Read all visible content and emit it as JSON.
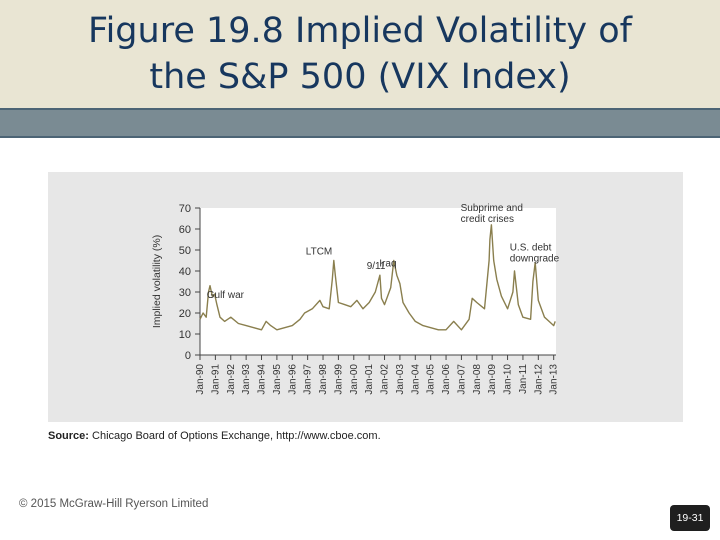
{
  "slide": {
    "title_line1": "Figure 19.8 Implied Volatility of",
    "title_line2": "the S&P 500 (VIX Index)",
    "source_label": "Source:",
    "source_text": " Chicago Board of Options Exchange, http://www.cboe.com.",
    "copyright": "© 2015 McGraw-Hill Ryerson Limited",
    "page_number": "19-31"
  },
  "chart_data": {
    "type": "line",
    "title": "",
    "xlabel": "",
    "ylabel": "Implied volatility (%)",
    "ylim": [
      0,
      70
    ],
    "yticks": [
      0,
      10,
      20,
      30,
      40,
      50,
      60,
      70
    ],
    "grid": false,
    "xticks": [
      "Jan-90",
      "Jan-91",
      "Jan-92",
      "Jan-93",
      "Jan-94",
      "Jan-95",
      "Jan-96",
      "Jan-97",
      "Jan-98",
      "Jan-99",
      "Jan-00",
      "Jan-01",
      "Jan-02",
      "Jan-03",
      "Jan-04",
      "Jan-05",
      "Jan-06",
      "Jan-07",
      "Jan-08",
      "Jan-09",
      "Jan-10",
      "Jan-11",
      "Jan-12",
      "Jan-13"
    ],
    "series": [
      {
        "name": "",
        "color": "#8a7f4e",
        "x": [
          1990.0,
          1990.2,
          1990.4,
          1990.55,
          1990.65,
          1990.8,
          1990.95,
          1991.1,
          1991.3,
          1991.6,
          1992.0,
          1992.5,
          1993.0,
          1993.5,
          1994.0,
          1994.3,
          1994.6,
          1995.0,
          1995.5,
          1996.0,
          1996.5,
          1996.8,
          1997.3,
          1997.8,
          1998.0,
          1998.4,
          1998.6,
          1998.7,
          1998.8,
          1999.0,
          1999.4,
          1999.8,
          2000.2,
          2000.6,
          2001.0,
          2001.4,
          2001.7,
          2001.8,
          2002.0,
          2002.4,
          2002.6,
          2002.8,
          2003.0,
          2003.2,
          2003.6,
          2004.0,
          2004.5,
          2005.0,
          2005.5,
          2006.0,
          2006.5,
          2007.0,
          2007.5,
          2007.7,
          2008.0,
          2008.5,
          2008.8,
          2008.85,
          2008.95,
          2009.1,
          2009.3,
          2009.6,
          2010.0,
          2010.35,
          2010.45,
          2010.7,
          2011.0,
          2011.5,
          2011.65,
          2011.8,
          2012.0,
          2012.4,
          2012.7,
          2013.0,
          2013.1
        ],
        "y": [
          17,
          20,
          18,
          30,
          33,
          28,
          29,
          24,
          18,
          16,
          18,
          15,
          14,
          13,
          12,
          16,
          14,
          12,
          13,
          14,
          17,
          20,
          22,
          26,
          23,
          22,
          36,
          45,
          38,
          25,
          24,
          23,
          26,
          22,
          25,
          30,
          38,
          27,
          24,
          32,
          45,
          38,
          34,
          25,
          20,
          16,
          14,
          13,
          12,
          12,
          16,
          12,
          17,
          27,
          25,
          22,
          45,
          55,
          62,
          45,
          36,
          28,
          22,
          30,
          40,
          24,
          18,
          17,
          35,
          44,
          26,
          18,
          16,
          14,
          16
        ]
      }
    ],
    "annotations": [
      {
        "text": "Gulf war",
        "x": 1990.7,
        "y": 30
      },
      {
        "text": "LTCM",
        "x": 1998.7,
        "y": 46
      },
      {
        "text": "9/11",
        "x": 2001.75,
        "y": 38
      },
      {
        "text": "Iraq",
        "x": 2002.7,
        "y": 45
      },
      {
        "text": "Subprime and credit crises",
        "x": 2008.9,
        "y": 62
      },
      {
        "text": "U.S. debt downgrade",
        "x": 2011.7,
        "y": 44
      }
    ]
  }
}
